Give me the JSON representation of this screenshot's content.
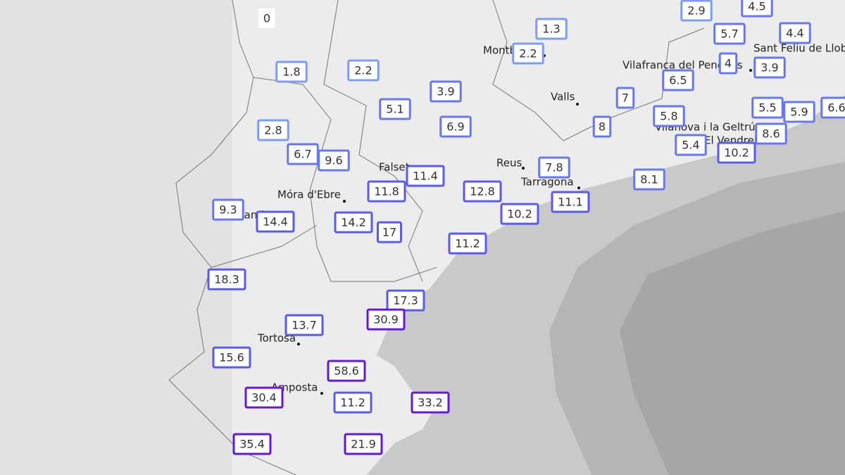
{
  "towns": [
    "Montblanc",
    "Vilafranca del Penedès",
    "Sant Feliu de Llobregat",
    "Valls",
    "Vilanova i la Geltrú",
    "El Vendrell",
    "Falset",
    "Reus",
    "Tarragona",
    "Móra d'Ebre",
    "Gandesa",
    "Tortosa",
    "Amposta"
  ],
  "stations": [
    0,
    1.8,
    2.2,
    1.3,
    2.2,
    2.9,
    4.5,
    5.7,
    4.4,
    3.9,
    4,
    6.5,
    7,
    3.9,
    5.1,
    6.9,
    2.8,
    6.7,
    9.6,
    11.4,
    11.8,
    12.8,
    7.8,
    11.1,
    10.2,
    8.1,
    8,
    5.8,
    5.4,
    10.2,
    8.6,
    5.5,
    5.9,
    6.6,
    9.3,
    14.4,
    14.2,
    17,
    11.2,
    18.3,
    17.3,
    30.9,
    13.7,
    15.6,
    58.6,
    30.4,
    11.2,
    33.2,
    35.4,
    21.9
  ]
}
